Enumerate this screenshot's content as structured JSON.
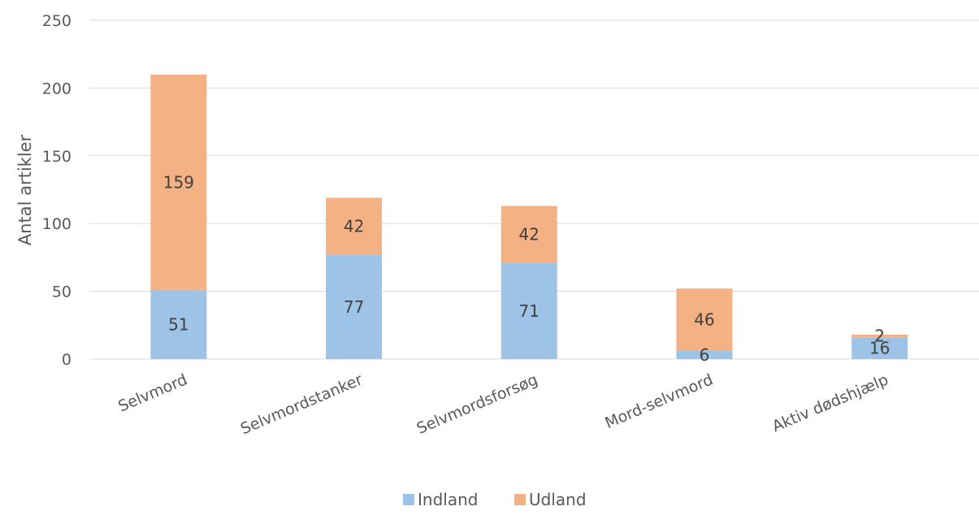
{
  "chart_data": {
    "type": "bar",
    "stacked": true,
    "categories": [
      "Selvmord",
      "Selvmordstanker",
      "Selvmordsforsøg",
      "Mord-selvmord",
      "Aktiv dødshjælp"
    ],
    "series": [
      {
        "name": "Indland",
        "values": [
          51,
          77,
          71,
          6,
          16
        ],
        "color": "#9dc3e6"
      },
      {
        "name": "Udland",
        "values": [
          159,
          42,
          42,
          46,
          2
        ],
        "color": "#f4b183"
      }
    ],
    "ylabel": "Antal artikler",
    "xlabel": "",
    "ylim": [
      0,
      250
    ],
    "yticks": [
      0,
      50,
      100,
      150,
      200,
      250
    ],
    "grid": true,
    "legend": "bottom",
    "colors": {
      "gridline": "#d9d9d9",
      "text": "#595959",
      "datalabel": "#404040"
    }
  }
}
